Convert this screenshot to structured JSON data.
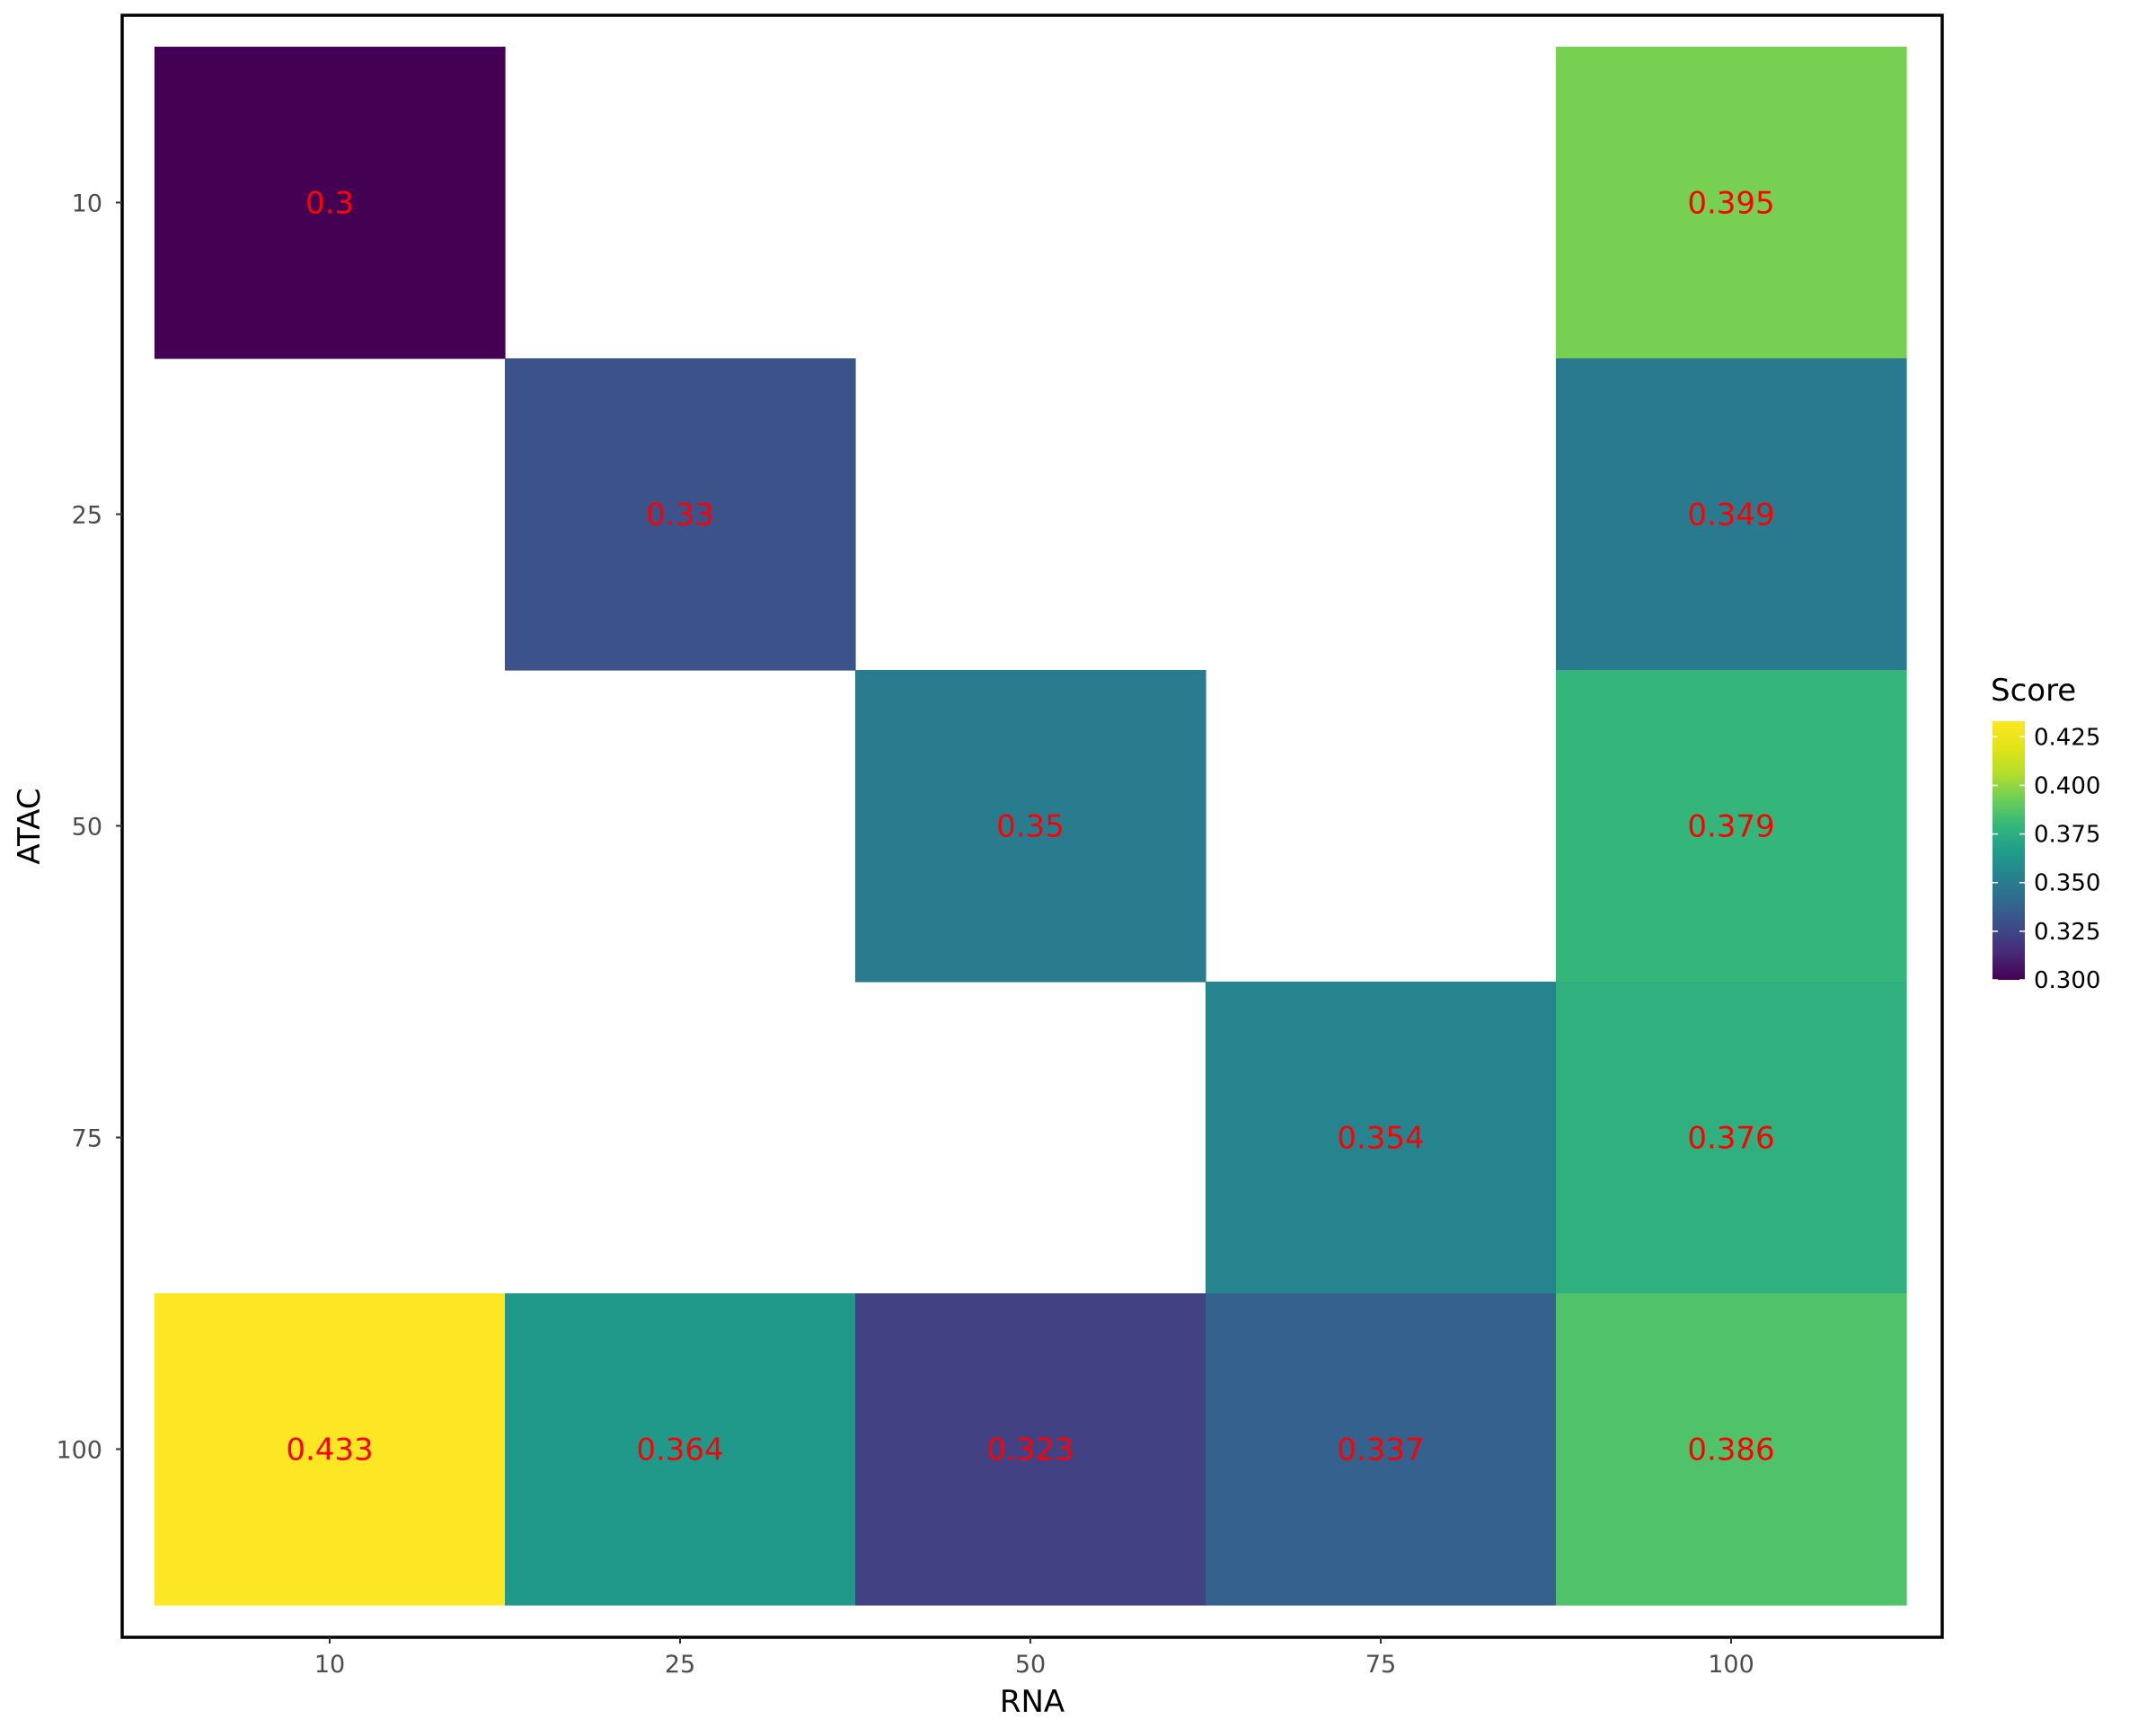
{
  "chart_data": {
    "type": "heatmap",
    "title": "",
    "xlabel": "RNA",
    "ylabel": "ATAC",
    "x_categories": [
      "10",
      "25",
      "50",
      "75",
      "100"
    ],
    "y_categories": [
      "10",
      "25",
      "50",
      "75",
      "100"
    ],
    "cells": [
      {
        "x": "10",
        "y": "10",
        "value": 0.3,
        "label": "0.3"
      },
      {
        "x": "100",
        "y": "10",
        "value": 0.395,
        "label": "0.395"
      },
      {
        "x": "25",
        "y": "25",
        "value": 0.33,
        "label": "0.33"
      },
      {
        "x": "100",
        "y": "25",
        "value": 0.349,
        "label": "0.349"
      },
      {
        "x": "50",
        "y": "50",
        "value": 0.35,
        "label": "0.35"
      },
      {
        "x": "100",
        "y": "50",
        "value": 0.379,
        "label": "0.379"
      },
      {
        "x": "75",
        "y": "75",
        "value": 0.354,
        "label": "0.354"
      },
      {
        "x": "100",
        "y": "75",
        "value": 0.376,
        "label": "0.376"
      },
      {
        "x": "10",
        "y": "100",
        "value": 0.433,
        "label": "0.433"
      },
      {
        "x": "25",
        "y": "100",
        "value": 0.364,
        "label": "0.364"
      },
      {
        "x": "50",
        "y": "100",
        "value": 0.323,
        "label": "0.323"
      },
      {
        "x": "75",
        "y": "100",
        "value": 0.337,
        "label": "0.337"
      },
      {
        "x": "100",
        "y": "100",
        "value": 0.386,
        "label": "0.386"
      }
    ],
    "colorscale": "viridis",
    "value_range": [
      0.3,
      0.433
    ],
    "label_color": "#ff0000",
    "legend": {
      "title": "Score",
      "position": "right",
      "ticks": [
        "0.300",
        "0.325",
        "0.350",
        "0.375",
        "0.400",
        "0.425"
      ]
    },
    "grid": false
  }
}
